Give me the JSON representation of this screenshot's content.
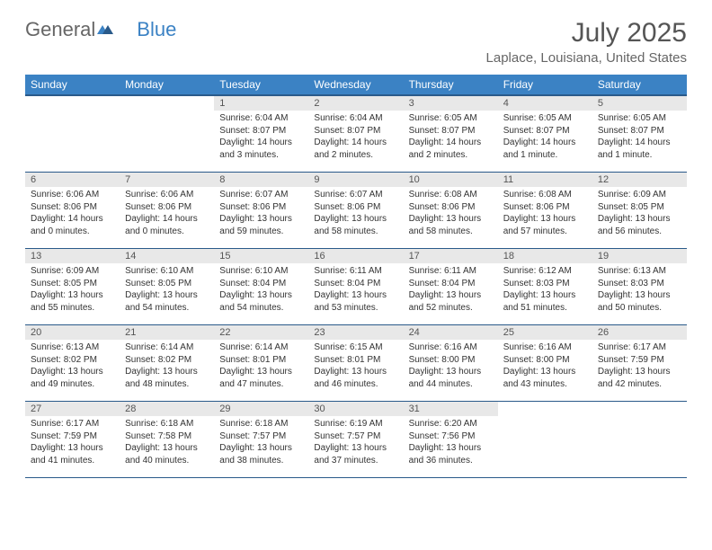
{
  "brand": {
    "part1": "General",
    "part2": "Blue",
    "logo_color": "#3b82c4",
    "text_color": "#666666"
  },
  "title": "July 2025",
  "location": "Laplace, Louisiana, United States",
  "colors": {
    "header_bg": "#3b82c4",
    "header_border": "#2a5a8a",
    "daynum_bg": "#e8e8e8",
    "text": "#333333"
  },
  "day_headers": [
    "Sunday",
    "Monday",
    "Tuesday",
    "Wednesday",
    "Thursday",
    "Friday",
    "Saturday"
  ],
  "weeks": [
    [
      {
        "empty": true
      },
      {
        "empty": true
      },
      {
        "d": "1",
        "sr": "6:04 AM",
        "ss": "8:07 PM",
        "dl": "14 hours and 3 minutes."
      },
      {
        "d": "2",
        "sr": "6:04 AM",
        "ss": "8:07 PM",
        "dl": "14 hours and 2 minutes."
      },
      {
        "d": "3",
        "sr": "6:05 AM",
        "ss": "8:07 PM",
        "dl": "14 hours and 2 minutes."
      },
      {
        "d": "4",
        "sr": "6:05 AM",
        "ss": "8:07 PM",
        "dl": "14 hours and 1 minute."
      },
      {
        "d": "5",
        "sr": "6:05 AM",
        "ss": "8:07 PM",
        "dl": "14 hours and 1 minute."
      }
    ],
    [
      {
        "d": "6",
        "sr": "6:06 AM",
        "ss": "8:06 PM",
        "dl": "14 hours and 0 minutes."
      },
      {
        "d": "7",
        "sr": "6:06 AM",
        "ss": "8:06 PM",
        "dl": "14 hours and 0 minutes."
      },
      {
        "d": "8",
        "sr": "6:07 AM",
        "ss": "8:06 PM",
        "dl": "13 hours and 59 minutes."
      },
      {
        "d": "9",
        "sr": "6:07 AM",
        "ss": "8:06 PM",
        "dl": "13 hours and 58 minutes."
      },
      {
        "d": "10",
        "sr": "6:08 AM",
        "ss": "8:06 PM",
        "dl": "13 hours and 58 minutes."
      },
      {
        "d": "11",
        "sr": "6:08 AM",
        "ss": "8:06 PM",
        "dl": "13 hours and 57 minutes."
      },
      {
        "d": "12",
        "sr": "6:09 AM",
        "ss": "8:05 PM",
        "dl": "13 hours and 56 minutes."
      }
    ],
    [
      {
        "d": "13",
        "sr": "6:09 AM",
        "ss": "8:05 PM",
        "dl": "13 hours and 55 minutes."
      },
      {
        "d": "14",
        "sr": "6:10 AM",
        "ss": "8:05 PM",
        "dl": "13 hours and 54 minutes."
      },
      {
        "d": "15",
        "sr": "6:10 AM",
        "ss": "8:04 PM",
        "dl": "13 hours and 54 minutes."
      },
      {
        "d": "16",
        "sr": "6:11 AM",
        "ss": "8:04 PM",
        "dl": "13 hours and 53 minutes."
      },
      {
        "d": "17",
        "sr": "6:11 AM",
        "ss": "8:04 PM",
        "dl": "13 hours and 52 minutes."
      },
      {
        "d": "18",
        "sr": "6:12 AM",
        "ss": "8:03 PM",
        "dl": "13 hours and 51 minutes."
      },
      {
        "d": "19",
        "sr": "6:13 AM",
        "ss": "8:03 PM",
        "dl": "13 hours and 50 minutes."
      }
    ],
    [
      {
        "d": "20",
        "sr": "6:13 AM",
        "ss": "8:02 PM",
        "dl": "13 hours and 49 minutes."
      },
      {
        "d": "21",
        "sr": "6:14 AM",
        "ss": "8:02 PM",
        "dl": "13 hours and 48 minutes."
      },
      {
        "d": "22",
        "sr": "6:14 AM",
        "ss": "8:01 PM",
        "dl": "13 hours and 47 minutes."
      },
      {
        "d": "23",
        "sr": "6:15 AM",
        "ss": "8:01 PM",
        "dl": "13 hours and 46 minutes."
      },
      {
        "d": "24",
        "sr": "6:16 AM",
        "ss": "8:00 PM",
        "dl": "13 hours and 44 minutes."
      },
      {
        "d": "25",
        "sr": "6:16 AM",
        "ss": "8:00 PM",
        "dl": "13 hours and 43 minutes."
      },
      {
        "d": "26",
        "sr": "6:17 AM",
        "ss": "7:59 PM",
        "dl": "13 hours and 42 minutes."
      }
    ],
    [
      {
        "d": "27",
        "sr": "6:17 AM",
        "ss": "7:59 PM",
        "dl": "13 hours and 41 minutes."
      },
      {
        "d": "28",
        "sr": "6:18 AM",
        "ss": "7:58 PM",
        "dl": "13 hours and 40 minutes."
      },
      {
        "d": "29",
        "sr": "6:18 AM",
        "ss": "7:57 PM",
        "dl": "13 hours and 38 minutes."
      },
      {
        "d": "30",
        "sr": "6:19 AM",
        "ss": "7:57 PM",
        "dl": "13 hours and 37 minutes."
      },
      {
        "d": "31",
        "sr": "6:20 AM",
        "ss": "7:56 PM",
        "dl": "13 hours and 36 minutes."
      },
      {
        "empty": true
      },
      {
        "empty": true
      }
    ]
  ]
}
